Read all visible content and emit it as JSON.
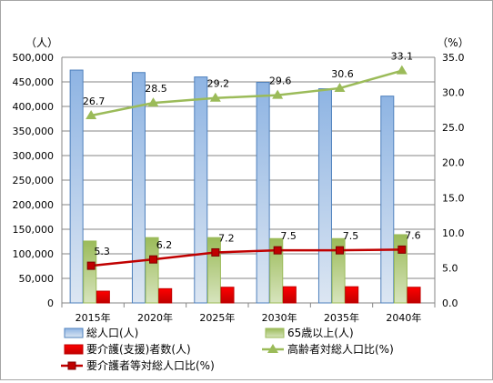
{
  "chart_data": {
    "type": "bar",
    "categories": [
      "2015年",
      "2020年",
      "2025年",
      "2030年",
      "2035年",
      "2040年"
    ],
    "left_axis": {
      "unit": "（人）",
      "ylim": [
        0,
        500000
      ],
      "ticks": [
        "0",
        "50,000",
        "100,000",
        "150,000",
        "200,000",
        "250,000",
        "300,000",
        "350,000",
        "400,000",
        "450,000",
        "500,000"
      ]
    },
    "right_axis": {
      "unit": "（%）",
      "ylim": [
        0,
        35
      ],
      "ticks": [
        "0.0",
        "5.0",
        "10.0",
        "15.0",
        "20.0",
        "25.0",
        "30.0",
        "35.0"
      ]
    },
    "bar_series": [
      {
        "name": "総人口(人)",
        "values": [
          474000,
          469000,
          460000,
          449000,
          436000,
          421000
        ],
        "color": "#4f81bd",
        "fill": "#c6d9f1"
      },
      {
        "name": "65歳以上(人)",
        "values": [
          126000,
          133000,
          133000,
          131000,
          131000,
          139000
        ],
        "color": "#9bbb59",
        "fill": "#9bbb59"
      },
      {
        "name": "要介護(支援)者数(人)",
        "values": [
          24000,
          29000,
          32000,
          33000,
          33000,
          32000
        ],
        "color": "#c00000",
        "fill": "#e00000"
      }
    ],
    "line_series": [
      {
        "name": "高齢者対総人口比(%)",
        "values": [
          26.7,
          28.5,
          29.2,
          29.6,
          30.6,
          33.1
        ],
        "labels": [
          "26.7",
          "28.5",
          "29.2",
          "29.6",
          "30.6",
          "33.1"
        ],
        "color": "#9bbb59",
        "marker": "triangle"
      },
      {
        "name": "要介護者等対総人口比(%)",
        "values": [
          5.3,
          6.2,
          7.2,
          7.5,
          7.5,
          7.6
        ],
        "labels": [
          "5.3",
          "6.2",
          "7.2",
          "7.5",
          "7.5",
          "7.6"
        ],
        "color": "#c00000",
        "marker": "square"
      }
    ],
    "grid": true,
    "legend": "bottom"
  }
}
